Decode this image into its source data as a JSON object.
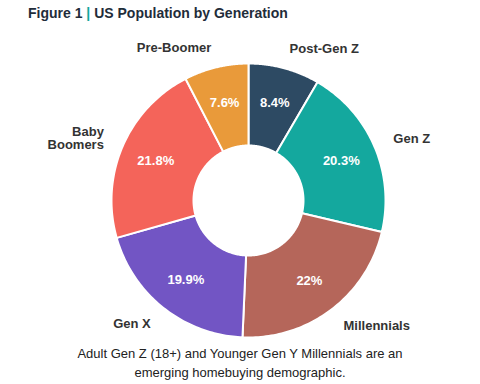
{
  "chart_data": {
    "type": "donut",
    "title": "Figure 1 | US Population by Generation",
    "categories": [
      "Post-Gen Z",
      "Gen Z",
      "Millennials",
      "Gen X",
      "Baby Boomers",
      "Pre-Boomer"
    ],
    "values": [
      8.4,
      20.3,
      22,
      19.9,
      21.8,
      7.6
    ],
    "value_labels": [
      "8.4%",
      "20.3%",
      "22%",
      "19.9%",
      "21.8%",
      "7.6%"
    ],
    "colors": [
      "#2d4a63",
      "#14a89e",
      "#b5665a",
      "#7255c4",
      "#f4645a",
      "#e99a3a"
    ],
    "data_labels": true,
    "caption": "Adult Gen Z (18+) and Younger Gen Y Millennials are an emerging homebuying demographic."
  }
}
